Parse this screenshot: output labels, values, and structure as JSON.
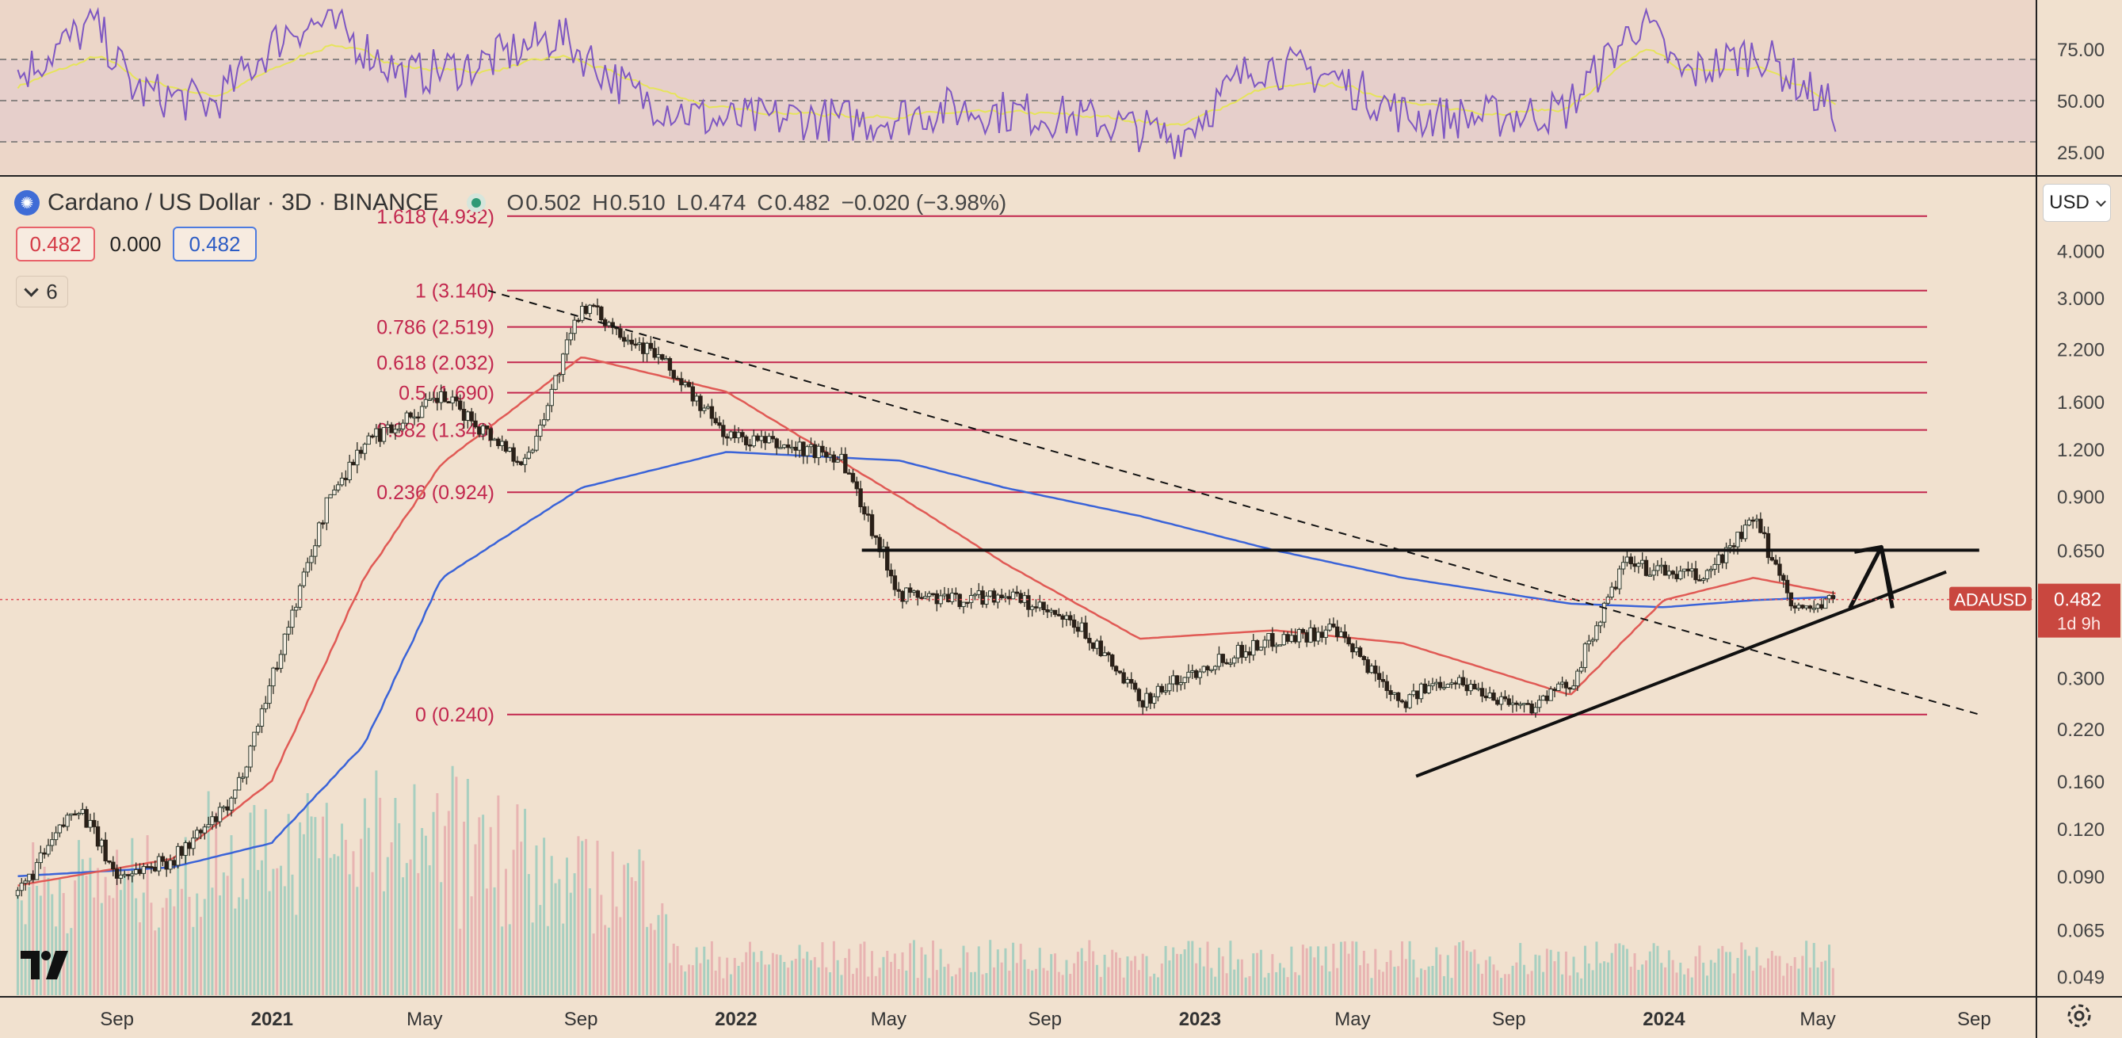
{
  "symbol": {
    "title": "Cardano / US Dollar · 3D · BINANCE",
    "ohlc": [
      {
        "k": "O",
        "v": "0.502"
      },
      {
        "k": "H",
        "v": "0.510"
      },
      {
        "k": "L",
        "v": "0.474"
      },
      {
        "k": "C",
        "v": "0.482"
      }
    ],
    "change": "−0.020 (−3.98%)"
  },
  "boxes": {
    "bid": "0.482",
    "spread": "0.000",
    "ask": "0.482"
  },
  "indicators_count": "6",
  "currency": "USD",
  "last_price": {
    "ticker": "ADAUSD",
    "price": "0.482",
    "countdown": "1d 9h"
  },
  "colors": {
    "background": "#f1e1cf",
    "fib": "#c2274e",
    "ma_fast": "#e05a55",
    "ma_slow": "#3a63d8",
    "rsi_line": "#7e57c2",
    "rsi_ma": "#e6e45a",
    "candle_up": "#2e3b30",
    "candle_down": "#2a2018",
    "volume_up": "#a8cfc0",
    "volume_down": "#e8b4b2"
  },
  "chart_data": [
    {
      "type": "line",
      "name": "RSI",
      "x": [
        "2020-06",
        "2020-08",
        "2020-09",
        "2020-11",
        "2021-01",
        "2021-02",
        "2021-04",
        "2021-06",
        "2021-08",
        "2021-10",
        "2021-12",
        "2022-02",
        "2022-04",
        "2022-06",
        "2022-08",
        "2022-10",
        "2022-12",
        "2023-02",
        "2023-04",
        "2023-06",
        "2023-08",
        "2023-10",
        "2023-12",
        "2024-01",
        "2024-03",
        "2024-05"
      ],
      "series": [
        {
          "values": [
            62,
            88,
            55,
            48,
            85,
            88,
            62,
            68,
            82,
            52,
            40,
            42,
            40,
            46,
            44,
            40,
            32,
            68,
            62,
            42,
            42,
            45,
            90,
            62,
            74,
            45
          ]
        },
        {
          "values": [
            58,
            72,
            60,
            52,
            70,
            78,
            66,
            64,
            72,
            58,
            46,
            44,
            42,
            44,
            44,
            42,
            38,
            56,
            58,
            48,
            44,
            46,
            76,
            64,
            66,
            48
          ]
        }
      ],
      "ylim": [
        15,
        95
      ],
      "y_ticks": [
        "75.00",
        "50.00",
        "25.00"
      ],
      "bands": [
        70,
        50,
        30
      ]
    },
    {
      "type": "line",
      "name": "Price",
      "x_ticks": [
        "Sep",
        "2021",
        "May",
        "Sep",
        "2022",
        "May",
        "Sep",
        "2023",
        "May",
        "Sep",
        "2024",
        "May",
        "Sep"
      ],
      "y_ticks": [
        "4.000",
        "3.000",
        "2.200",
        "1.600",
        "1.200",
        "0.900",
        "0.650",
        "0.300",
        "0.220",
        "0.160",
        "0.120",
        "0.090",
        "0.065",
        "0.049"
      ],
      "y_scale": "log",
      "fib_levels": [
        {
          "ratio": "1.618",
          "label": "1.618 (4.932)",
          "value": 4.932
        },
        {
          "ratio": "1",
          "label": "1 (3.140)",
          "value": 3.14
        },
        {
          "ratio": "0.786",
          "label": "0.786 (2.519)",
          "value": 2.519
        },
        {
          "ratio": "0.618",
          "label": "0.618 (2.032)",
          "value": 2.032
        },
        {
          "ratio": "0.5",
          "label": "0.5 (1.690)",
          "value": 1.69
        },
        {
          "ratio": "0.382",
          "label": "0.382 (1.348)",
          "value": 1.348
        },
        {
          "ratio": "0.236",
          "label": "0.236 (0.924)",
          "value": 0.924
        },
        {
          "ratio": "0",
          "label": "0 (0.240)",
          "value": 0.24
        }
      ],
      "price_path": {
        "x": [
          "2020-06-15",
          "2020-08-01",
          "2020-09-01",
          "2020-10-15",
          "2020-12-01",
          "2021-01-01",
          "2021-02-15",
          "2021-03-15",
          "2021-05-15",
          "2021-07-20",
          "2021-09-02",
          "2021-11-01",
          "2021-12-25",
          "2022-03-25",
          "2022-05-10",
          "2022-06-20",
          "2022-08-01",
          "2022-10-01",
          "2022-11-15",
          "2023-01-10",
          "2023-03-01",
          "2023-04-15",
          "2023-06-10",
          "2023-07-15",
          "2023-09-15",
          "2023-10-20",
          "2023-12-01",
          "2024-01-01",
          "2024-02-01",
          "2024-03-12",
          "2024-04-15",
          "2024-05-15"
        ],
        "close": [
          0.08,
          0.14,
          0.09,
          0.1,
          0.14,
          0.3,
          0.9,
          1.25,
          1.65,
          1.1,
          2.9,
          2.1,
          1.3,
          1.15,
          0.5,
          0.48,
          0.5,
          0.4,
          0.26,
          0.33,
          0.38,
          0.4,
          0.26,
          0.3,
          0.25,
          0.29,
          0.6,
          0.57,
          0.55,
          0.78,
          0.45,
          0.48
        ],
        "ylim": [
          0.045,
          6.0
        ]
      },
      "ma_fast": {
        "x": [
          "2020-06-15",
          "2020-10-15",
          "2021-01-01",
          "2021-03-15",
          "2021-05-15",
          "2021-09-02",
          "2021-12-25",
          "2022-05-10",
          "2022-08-01",
          "2022-11-15",
          "2023-03-01",
          "2023-06-10",
          "2023-10-20",
          "2024-01-01",
          "2024-03-12",
          "2024-05-15"
        ],
        "values": [
          0.085,
          0.1,
          0.16,
          0.55,
          1.1,
          2.1,
          1.7,
          0.9,
          0.6,
          0.38,
          0.4,
          0.37,
          0.27,
          0.48,
          0.55,
          0.5
        ]
      },
      "ma_slow": {
        "x": [
          "2020-06-15",
          "2020-10-15",
          "2021-01-01",
          "2021-03-15",
          "2021-05-15",
          "2021-09-02",
          "2021-12-25",
          "2022-05-10",
          "2022-08-01",
          "2022-11-15",
          "2023-03-01",
          "2023-06-10",
          "2023-10-20",
          "2024-01-01",
          "2024-03-12",
          "2024-05-15"
        ],
        "values": [
          0.09,
          0.095,
          0.11,
          0.2,
          0.55,
          0.95,
          1.18,
          1.12,
          0.95,
          0.8,
          0.65,
          0.55,
          0.47,
          0.46,
          0.48,
          0.49
        ]
      },
      "trendlines": [
        {
          "style": "dashed",
          "from": [
            "2021-06-20",
            3.14
          ],
          "to": [
            "2024-09-05",
            0.24
          ]
        },
        {
          "style": "solid",
          "from": [
            "2022-04-10",
            0.65
          ],
          "to": [
            "2024-09-05",
            0.65
          ]
        },
        {
          "style": "solid",
          "from": [
            "2023-06-20",
            0.165
          ],
          "to": [
            "2024-08-10",
            0.57
          ]
        }
      ],
      "arrow": {
        "from": [
          "2024-05-20",
          0.48
        ],
        "to": [
          "2024-06-20",
          0.65
        ]
      },
      "last_price_line": 0.482
    }
  ]
}
